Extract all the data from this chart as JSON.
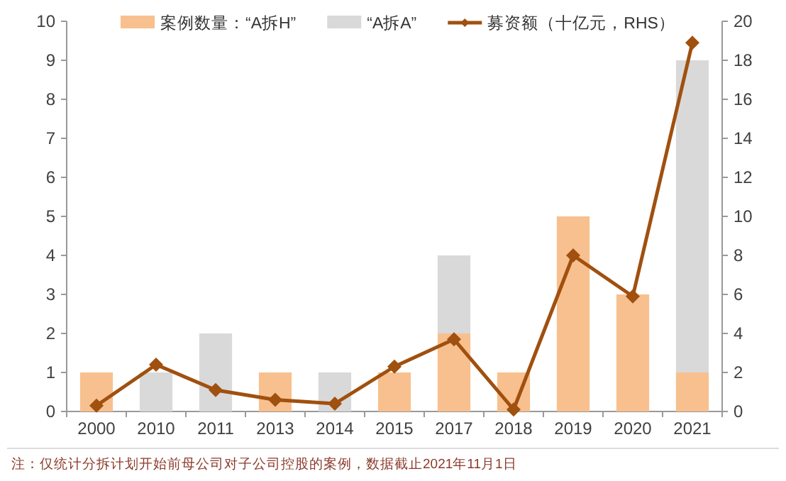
{
  "chart_data": {
    "type": "bar",
    "stacked": true,
    "legend": "top",
    "categories": [
      "2000",
      "2010",
      "2011",
      "2013",
      "2014",
      "2015",
      "2017",
      "2018",
      "2019",
      "2020",
      "2021"
    ],
    "series": [
      {
        "name": "案例数量：“A拆H”",
        "color": "#f8c08e",
        "values": [
          1,
          0,
          0,
          1,
          0,
          1,
          2,
          1,
          5,
          3,
          1
        ]
      },
      {
        "name": "“A拆A”",
        "color": "#d9d9d9",
        "values": [
          0,
          1,
          2,
          0,
          1,
          0,
          2,
          0,
          0,
          0,
          8
        ]
      },
      {
        "name": "募资额（十亿元，RHS）",
        "type": "line",
        "axis": "y2",
        "marker": "diamond",
        "color": "#a0500f",
        "values": [
          0.3,
          2.4,
          1.1,
          0.6,
          0.4,
          2.3,
          3.7,
          0.1,
          8.0,
          5.9,
          18.9
        ]
      }
    ],
    "ylim": [
      0,
      10
    ],
    "yticks": [
      0,
      1,
      2,
      3,
      4,
      5,
      6,
      7,
      8,
      9,
      10
    ],
    "y2lim": [
      0,
      20
    ],
    "y2ticks": [
      0,
      2,
      4,
      6,
      8,
      10,
      12,
      14,
      16,
      18,
      20
    ],
    "annotations": [
      "注：仅统计分拆计划开始前母公司对子公司控股的案例，数据截止2021年11月1日"
    ]
  }
}
